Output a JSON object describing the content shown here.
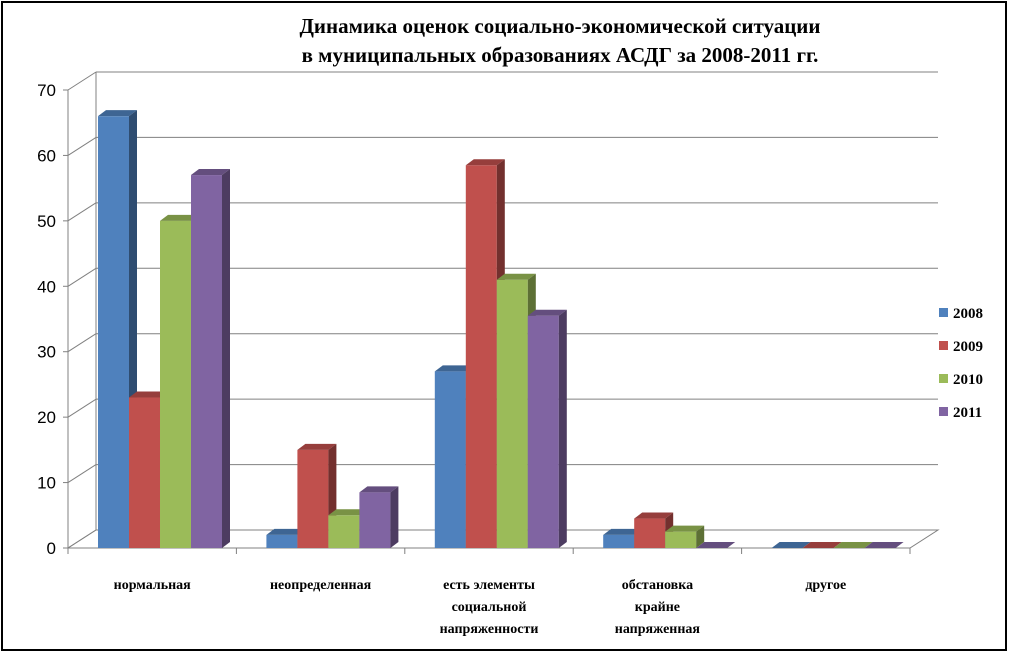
{
  "chart_data": {
    "type": "bar",
    "title_lines": [
      "Динамика оценок социально-экономической ситуации",
      "в муниципальных образованиях АСДГ за 2008-2011 гг."
    ],
    "categories": [
      [
        "нормальная"
      ],
      [
        "неопределенная"
      ],
      [
        "есть элементы",
        "социальной",
        "напряженности"
      ],
      [
        "обстановка",
        "крайне",
        "напряженная"
      ],
      [
        "другое"
      ]
    ],
    "series": [
      {
        "name": "2008",
        "color": "#4F81BD",
        "values": [
          66,
          2,
          27,
          2,
          0
        ]
      },
      {
        "name": "2009",
        "color": "#C0504D",
        "values": [
          23,
          15,
          58.5,
          4.5,
          0
        ]
      },
      {
        "name": "2010",
        "color": "#9BBB59",
        "values": [
          50,
          5,
          41,
          2.5,
          0
        ]
      },
      {
        "name": "2011",
        "color": "#8064A2",
        "values": [
          57,
          8.5,
          35.5,
          0,
          0
        ]
      }
    ],
    "ylim": [
      0,
      70
    ],
    "yticks": [
      0,
      10,
      20,
      30,
      40,
      50,
      60,
      70
    ],
    "grid": true,
    "legend": "right"
  }
}
